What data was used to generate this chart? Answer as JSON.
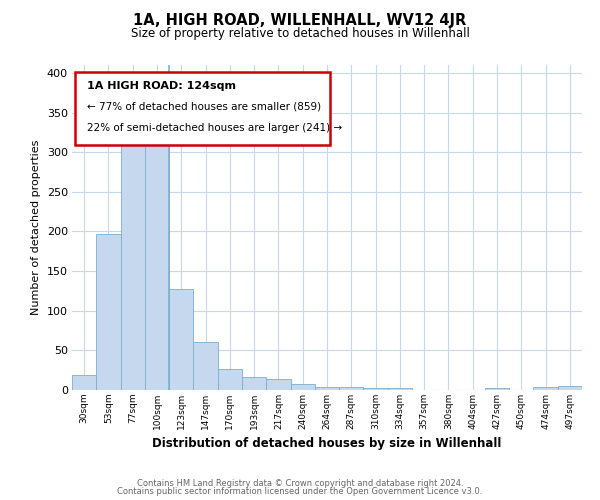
{
  "title": "1A, HIGH ROAD, WILLENHALL, WV12 4JR",
  "subtitle": "Size of property relative to detached houses in Willenhall",
  "xlabel": "Distribution of detached houses by size in Willenhall",
  "ylabel": "Number of detached properties",
  "bar_labels": [
    "30sqm",
    "53sqm",
    "77sqm",
    "100sqm",
    "123sqm",
    "147sqm",
    "170sqm",
    "193sqm",
    "217sqm",
    "240sqm",
    "264sqm",
    "287sqm",
    "310sqm",
    "334sqm",
    "357sqm",
    "380sqm",
    "404sqm",
    "427sqm",
    "450sqm",
    "474sqm",
    "497sqm"
  ],
  "bar_values": [
    19,
    197,
    320,
    325,
    128,
    61,
    26,
    16,
    14,
    7,
    4,
    4,
    3,
    3,
    0,
    0,
    0,
    3,
    0,
    4,
    5
  ],
  "bar_color": "#c5d8ed",
  "bar_edge_color": "#7aafd4",
  "ylim": [
    0,
    410
  ],
  "yticks": [
    0,
    50,
    100,
    150,
    200,
    250,
    300,
    350,
    400
  ],
  "annotation_title": "1A HIGH ROAD: 124sqm",
  "annotation_line1": "← 77% of detached houses are smaller (859)",
  "annotation_line2": "22% of semi-detached houses are larger (241) →",
  "annotation_box_edge": "#cc0000",
  "marker_bar_index": 4,
  "footer_line1": "Contains HM Land Registry data © Crown copyright and database right 2024.",
  "footer_line2": "Contains public sector information licensed under the Open Government Licence v3.0.",
  "background_color": "#ffffff",
  "grid_color": "#c8d8e8"
}
